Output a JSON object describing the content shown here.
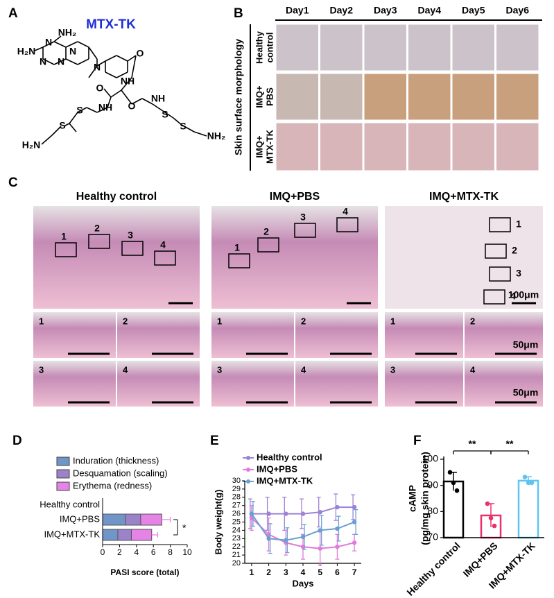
{
  "panel_a": {
    "label": "A",
    "title": "MTX-TK",
    "atoms": [
      "NH₂",
      "H₂N",
      "N",
      "N",
      "N",
      "N",
      "N",
      "O",
      "NH",
      "O",
      "NH",
      "O",
      "NH",
      "S",
      "S",
      "S",
      "S",
      "H₂N",
      "NH₂"
    ]
  },
  "panel_b": {
    "label": "B",
    "axis_title": "Skin surface morphology",
    "days": [
      "Day1",
      "Day2",
      "Day3",
      "Day4",
      "Day5",
      "Day6"
    ],
    "rows": [
      [
        "Healthy",
        "control"
      ],
      [
        "IMQ+",
        "PBS"
      ],
      [
        "IMQ+",
        "MTX-TK"
      ]
    ]
  },
  "panel_c": {
    "label": "C",
    "columns": [
      {
        "title": "Healthy control",
        "box_labels": [
          "1",
          "2",
          "3",
          "4"
        ]
      },
      {
        "title": "IMQ+PBS",
        "box_labels": [
          "1",
          "2",
          "3",
          "4"
        ]
      },
      {
        "title": "IMQ+MTX-TK",
        "box_labels": [
          "1",
          "2",
          "3",
          "4"
        ],
        "scale_labels": [
          "100μm",
          "50μm",
          "50μm"
        ]
      }
    ]
  },
  "chart_data": [
    {
      "type": "stacked_bar_h",
      "panel_label": "D",
      "categories": [
        "Healthy control",
        "IMQ+PBS",
        "IMQ+MTX-TK"
      ],
      "series": [
        {
          "name": "Induration (thickness)",
          "color": "#6f95c9",
          "values": [
            0,
            2.7,
            1.8
          ],
          "errors": [
            0,
            1.1,
            1.2
          ]
        },
        {
          "name": "Desquamation (scaling)",
          "color": "#9b82c9",
          "values": [
            0,
            1.8,
            1.6
          ],
          "errors": [
            0,
            0.9,
            0.8
          ]
        },
        {
          "name": "Erythema (redness)",
          "color": "#e584e6",
          "values": [
            0,
            2.5,
            2.4
          ],
          "errors": [
            0,
            1.0,
            0.7
          ]
        }
      ],
      "xlabel": "PASI score (total)",
      "xlim": [
        0,
        10
      ],
      "xticks": [
        0,
        2,
        4,
        6,
        8,
        10
      ],
      "annotation": "*"
    },
    {
      "type": "line",
      "panel_label": "E",
      "x": [
        1,
        2,
        3,
        4,
        5,
        6,
        7
      ],
      "series": [
        {
          "name": "Healthy control",
          "color": "#9b82d4",
          "values": [
            26,
            26,
            26,
            26,
            26.2,
            26.8,
            26.8
          ],
          "errors": [
            1.8,
            2,
            2,
            1.8,
            1.8,
            1.6,
            1.5
          ]
        },
        {
          "name": "IMQ+PBS",
          "color": "#e27ad9",
          "values": [
            25.5,
            23.5,
            22.5,
            22,
            21.8,
            22,
            22.5
          ],
          "errors": [
            1.5,
            2,
            1.5,
            1.5,
            2,
            1.5,
            1
          ]
        },
        {
          "name": "IMQ+MTX-TK",
          "color": "#6a9fd2",
          "values": [
            26,
            23,
            22.8,
            23.2,
            24,
            24.2,
            25
          ],
          "errors": [
            1.5,
            1.8,
            1.5,
            1.5,
            1.8,
            1.5,
            1.5
          ]
        }
      ],
      "xlabel": "Days",
      "ylabel": "Body weight(g)",
      "xlim": [
        0.6,
        7.4
      ],
      "xticks": [
        1,
        2,
        3,
        4,
        5,
        6,
        7
      ],
      "ylim": [
        20,
        30
      ],
      "yticks": [
        20,
        21,
        22,
        23,
        24,
        25,
        26,
        27,
        28,
        29,
        30
      ]
    },
    {
      "type": "bar",
      "panel_label": "F",
      "categories": [
        "Healthy control",
        "IMQ+PBS",
        "IMQ+MTX-TK"
      ],
      "values": [
        91.5,
        78.5,
        91.8
      ],
      "errors": [
        3.5,
        4.5,
        1.5
      ],
      "points": [
        [
          95,
          91,
          88
        ],
        [
          83,
          77.5,
          74.5
        ],
        [
          93.2,
          91,
          91
        ]
      ],
      "colors": [
        "#000000",
        "#e8306a",
        "#5fc4ef"
      ],
      "ylabel": [
        "cAMP",
        "(pg/mg skin protein)"
      ],
      "ylim": [
        70,
        100
      ],
      "yticks": [
        70,
        80,
        90,
        100
      ],
      "annotations": [
        "**",
        "**"
      ]
    }
  ]
}
